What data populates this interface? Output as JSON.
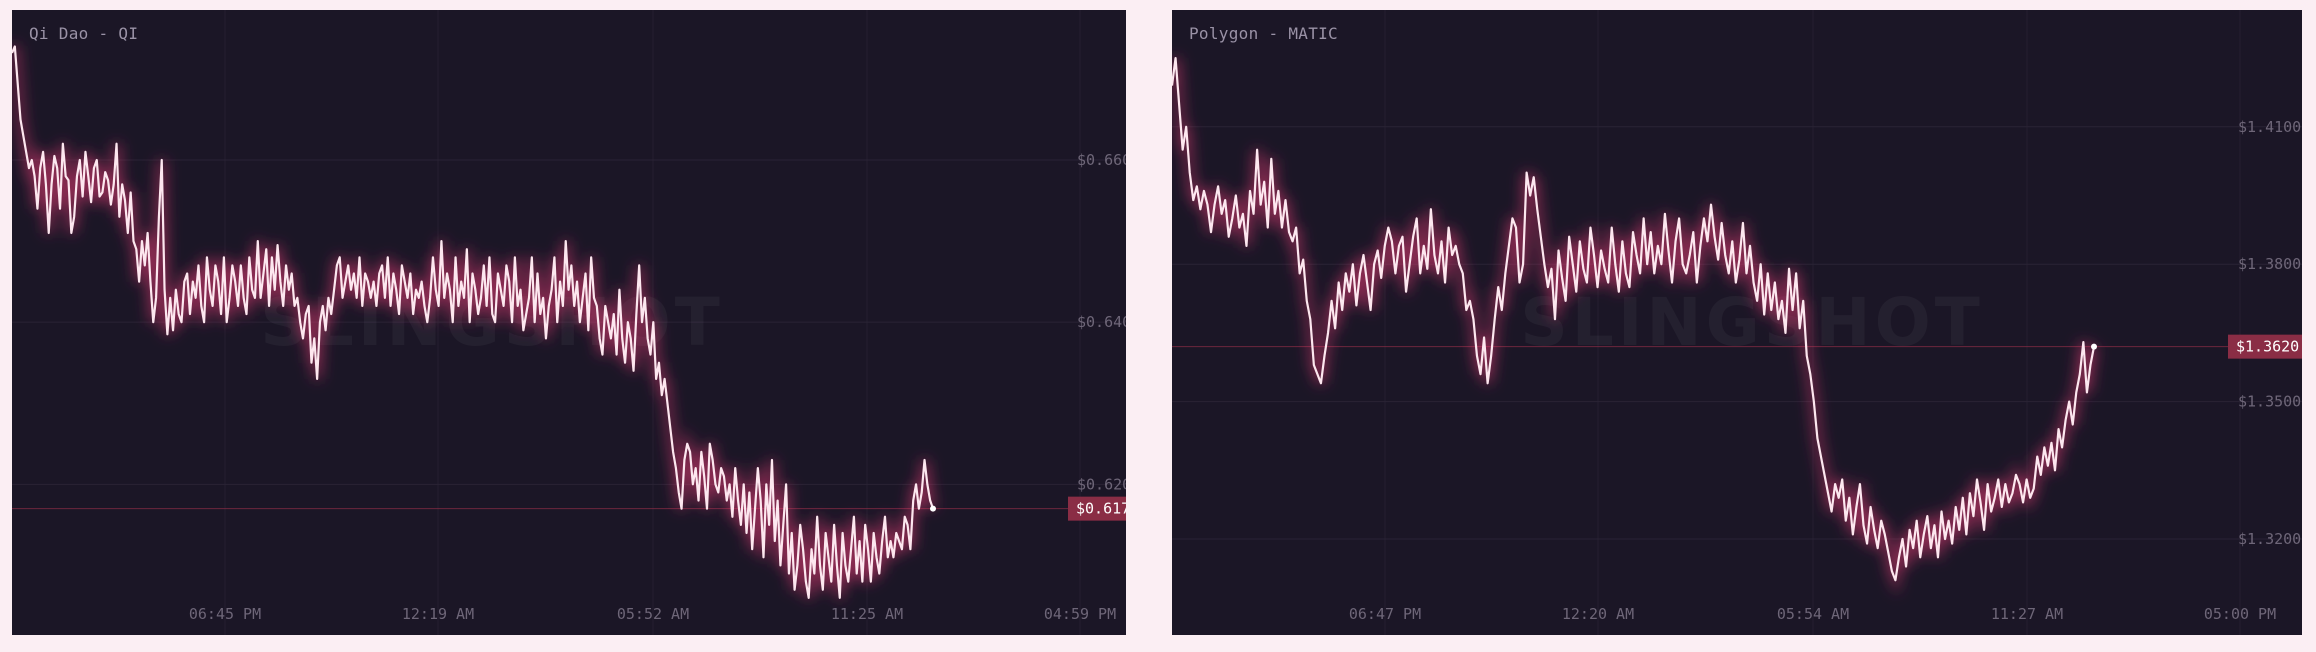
{
  "watermark": "SLINGSHOT",
  "colors": {
    "background": "#fbeef3",
    "panel": "#1b1626",
    "line": "#fde7ef",
    "glow": "#e23b73",
    "price_tag": "#8a2d45",
    "grid": "#2a2335",
    "tick_text": "#6e6678"
  },
  "chart_data": [
    {
      "type": "line",
      "title": "Qi Dao - QI",
      "xlabel": "",
      "ylabel": "",
      "x_ticks": [
        "06:45 PM",
        "12:19 AM",
        "05:52 AM",
        "11:25 AM",
        "04:59 PM"
      ],
      "y_ticks": [
        "$0.660",
        "$0.640",
        "$0.620"
      ],
      "y_tick_values": [
        0.66,
        0.64,
        0.62
      ],
      "ylim": [
        0.6045,
        0.6785
      ],
      "current_price": 0.617,
      "current_price_label": "$0.617",
      "grid": true,
      "series": [
        {
          "values": [
            0.6732,
            0.674,
            0.6695,
            0.665,
            0.663,
            0.661,
            0.659,
            0.66,
            0.658,
            0.654,
            0.659,
            0.661,
            0.657,
            0.651,
            0.657,
            0.6605,
            0.659,
            0.654,
            0.662,
            0.658,
            0.6575,
            0.651,
            0.653,
            0.658,
            0.66,
            0.6555,
            0.661,
            0.658,
            0.6548,
            0.659,
            0.66,
            0.6555,
            0.656,
            0.6585,
            0.6575,
            0.6545,
            0.657,
            0.662,
            0.653,
            0.657,
            0.655,
            0.651,
            0.656,
            0.65,
            0.649,
            0.645,
            0.65,
            0.647,
            0.651,
            0.645,
            0.64,
            0.643,
            0.653,
            0.66,
            0.644,
            0.6385,
            0.643,
            0.639,
            0.644,
            0.641,
            0.64,
            0.645,
            0.646,
            0.641,
            0.645,
            0.643,
            0.647,
            0.642,
            0.64,
            0.648,
            0.644,
            0.642,
            0.647,
            0.645,
            0.641,
            0.648,
            0.64,
            0.643,
            0.647,
            0.645,
            0.642,
            0.647,
            0.643,
            0.641,
            0.648,
            0.644,
            0.643,
            0.65,
            0.643,
            0.646,
            0.649,
            0.642,
            0.648,
            0.644,
            0.6495,
            0.645,
            0.642,
            0.647,
            0.644,
            0.646,
            0.642,
            0.643,
            0.64,
            0.638,
            0.641,
            0.642,
            0.635,
            0.638,
            0.633,
            0.64,
            0.642,
            0.639,
            0.643,
            0.641,
            0.644,
            0.647,
            0.648,
            0.643,
            0.645,
            0.647,
            0.644,
            0.646,
            0.643,
            0.648,
            0.642,
            0.646,
            0.645,
            0.643,
            0.645,
            0.642,
            0.646,
            0.647,
            0.643,
            0.648,
            0.642,
            0.646,
            0.644,
            0.641,
            0.647,
            0.645,
            0.643,
            0.646,
            0.641,
            0.644,
            0.643,
            0.645,
            0.642,
            0.64,
            0.643,
            0.648,
            0.644,
            0.642,
            0.65,
            0.643,
            0.646,
            0.644,
            0.64,
            0.648,
            0.642,
            0.645,
            0.643,
            0.649,
            0.64,
            0.646,
            0.644,
            0.641,
            0.643,
            0.647,
            0.642,
            0.648,
            0.641,
            0.64,
            0.646,
            0.644,
            0.642,
            0.647,
            0.645,
            0.64,
            0.648,
            0.642,
            0.644,
            0.639,
            0.641,
            0.643,
            0.648,
            0.64,
            0.646,
            0.641,
            0.643,
            0.638,
            0.642,
            0.644,
            0.648,
            0.64,
            0.645,
            0.642,
            0.65,
            0.644,
            0.647,
            0.642,
            0.645,
            0.64,
            0.643,
            0.646,
            0.639,
            0.648,
            0.643,
            0.642,
            0.638,
            0.636,
            0.642,
            0.64,
            0.638,
            0.641,
            0.636,
            0.644,
            0.638,
            0.635,
            0.64,
            0.638,
            0.634,
            0.641,
            0.647,
            0.64,
            0.643,
            0.638,
            0.636,
            0.64,
            0.633,
            0.635,
            0.631,
            0.633,
            0.63,
            0.627,
            0.624,
            0.622,
            0.619,
            0.617,
            0.623,
            0.625,
            0.624,
            0.62,
            0.622,
            0.618,
            0.624,
            0.621,
            0.617,
            0.625,
            0.623,
            0.62,
            0.619,
            0.622,
            0.621,
            0.618,
            0.62,
            0.616,
            0.622,
            0.618,
            0.615,
            0.62,
            0.614,
            0.619,
            0.612,
            0.617,
            0.622,
            0.618,
            0.611,
            0.62,
            0.615,
            0.623,
            0.613,
            0.618,
            0.61,
            0.615,
            0.62,
            0.609,
            0.614,
            0.607,
            0.61,
            0.615,
            0.612,
            0.608,
            0.606,
            0.612,
            0.609,
            0.616,
            0.61,
            0.607,
            0.614,
            0.611,
            0.608,
            0.615,
            0.61,
            0.606,
            0.614,
            0.61,
            0.608,
            0.612,
            0.616,
            0.609,
            0.613,
            0.608,
            0.615,
            0.612,
            0.608,
            0.614,
            0.611,
            0.609,
            0.613,
            0.616,
            0.611,
            0.613,
            0.611,
            0.614,
            0.613,
            0.612,
            0.616,
            0.615,
            0.612,
            0.618,
            0.62,
            0.617,
            0.619,
            0.623,
            0.62,
            0.618,
            0.617
          ]
        }
      ]
    },
    {
      "type": "line",
      "title": "Polygon - MATIC",
      "xlabel": "",
      "ylabel": "",
      "x_ticks": [
        "06:47 PM",
        "12:20 AM",
        "05:54 AM",
        "11:27 AM",
        "05:00 PM"
      ],
      "y_ticks": [
        "$1.4100",
        "$1.3800",
        "$1.3500",
        "$1.3200"
      ],
      "y_tick_values": [
        1.41,
        1.38,
        1.35,
        1.32
      ],
      "ylim": [
        1.3045,
        1.4355
      ],
      "current_price": 1.362,
      "current_price_label": "$1.3620",
      "grid": true,
      "series": [
        {
          "values": [
            1.419,
            1.425,
            1.415,
            1.405,
            1.41,
            1.4,
            1.394,
            1.397,
            1.392,
            1.396,
            1.393,
            1.387,
            1.393,
            1.397,
            1.391,
            1.394,
            1.386,
            1.39,
            1.395,
            1.388,
            1.391,
            1.384,
            1.396,
            1.391,
            1.405,
            1.393,
            1.398,
            1.388,
            1.403,
            1.391,
            1.396,
            1.388,
            1.394,
            1.387,
            1.385,
            1.388,
            1.378,
            1.381,
            1.372,
            1.368,
            1.358,
            1.356,
            1.354,
            1.36,
            1.365,
            1.372,
            1.366,
            1.376,
            1.37,
            1.378,
            1.374,
            1.38,
            1.371,
            1.378,
            1.382,
            1.376,
            1.37,
            1.38,
            1.383,
            1.377,
            1.384,
            1.388,
            1.385,
            1.378,
            1.384,
            1.386,
            1.374,
            1.38,
            1.386,
            1.39,
            1.378,
            1.384,
            1.379,
            1.392,
            1.382,
            1.378,
            1.385,
            1.376,
            1.388,
            1.382,
            1.384,
            1.38,
            1.378,
            1.37,
            1.372,
            1.368,
            1.36,
            1.356,
            1.364,
            1.354,
            1.36,
            1.368,
            1.375,
            1.37,
            1.378,
            1.384,
            1.39,
            1.388,
            1.376,
            1.38,
            1.4,
            1.395,
            1.399,
            1.392,
            1.386,
            1.38,
            1.375,
            1.379,
            1.368,
            1.383,
            1.377,
            1.372,
            1.386,
            1.38,
            1.374,
            1.385,
            1.379,
            1.376,
            1.388,
            1.382,
            1.375,
            1.383,
            1.379,
            1.376,
            1.388,
            1.38,
            1.374,
            1.385,
            1.378,
            1.375,
            1.387,
            1.382,
            1.378,
            1.39,
            1.38,
            1.387,
            1.378,
            1.384,
            1.38,
            1.391,
            1.383,
            1.376,
            1.385,
            1.39,
            1.38,
            1.378,
            1.382,
            1.387,
            1.376,
            1.384,
            1.39,
            1.385,
            1.393,
            1.386,
            1.381,
            1.389,
            1.382,
            1.378,
            1.385,
            1.376,
            1.381,
            1.389,
            1.378,
            1.384,
            1.376,
            1.372,
            1.38,
            1.369,
            1.378,
            1.37,
            1.376,
            1.368,
            1.372,
            1.365,
            1.379,
            1.37,
            1.378,
            1.366,
            1.372,
            1.36,
            1.356,
            1.35,
            1.342,
            1.338,
            1.334,
            1.33,
            1.326,
            1.332,
            1.329,
            1.333,
            1.324,
            1.329,
            1.321,
            1.327,
            1.332,
            1.323,
            1.319,
            1.327,
            1.322,
            1.318,
            1.324,
            1.321,
            1.317,
            1.313,
            1.311,
            1.316,
            1.32,
            1.314,
            1.322,
            1.318,
            1.324,
            1.316,
            1.321,
            1.325,
            1.318,
            1.323,
            1.316,
            1.326,
            1.32,
            1.324,
            1.319,
            1.327,
            1.322,
            1.329,
            1.321,
            1.33,
            1.325,
            1.333,
            1.328,
            1.322,
            1.332,
            1.326,
            1.329,
            1.333,
            1.327,
            1.332,
            1.328,
            1.33,
            1.334,
            1.332,
            1.328,
            1.333,
            1.329,
            1.331,
            1.338,
            1.334,
            1.34,
            1.336,
            1.341,
            1.335,
            1.344,
            1.34,
            1.346,
            1.35,
            1.345,
            1.352,
            1.356,
            1.363,
            1.352,
            1.358,
            1.362
          ]
        }
      ]
    }
  ]
}
